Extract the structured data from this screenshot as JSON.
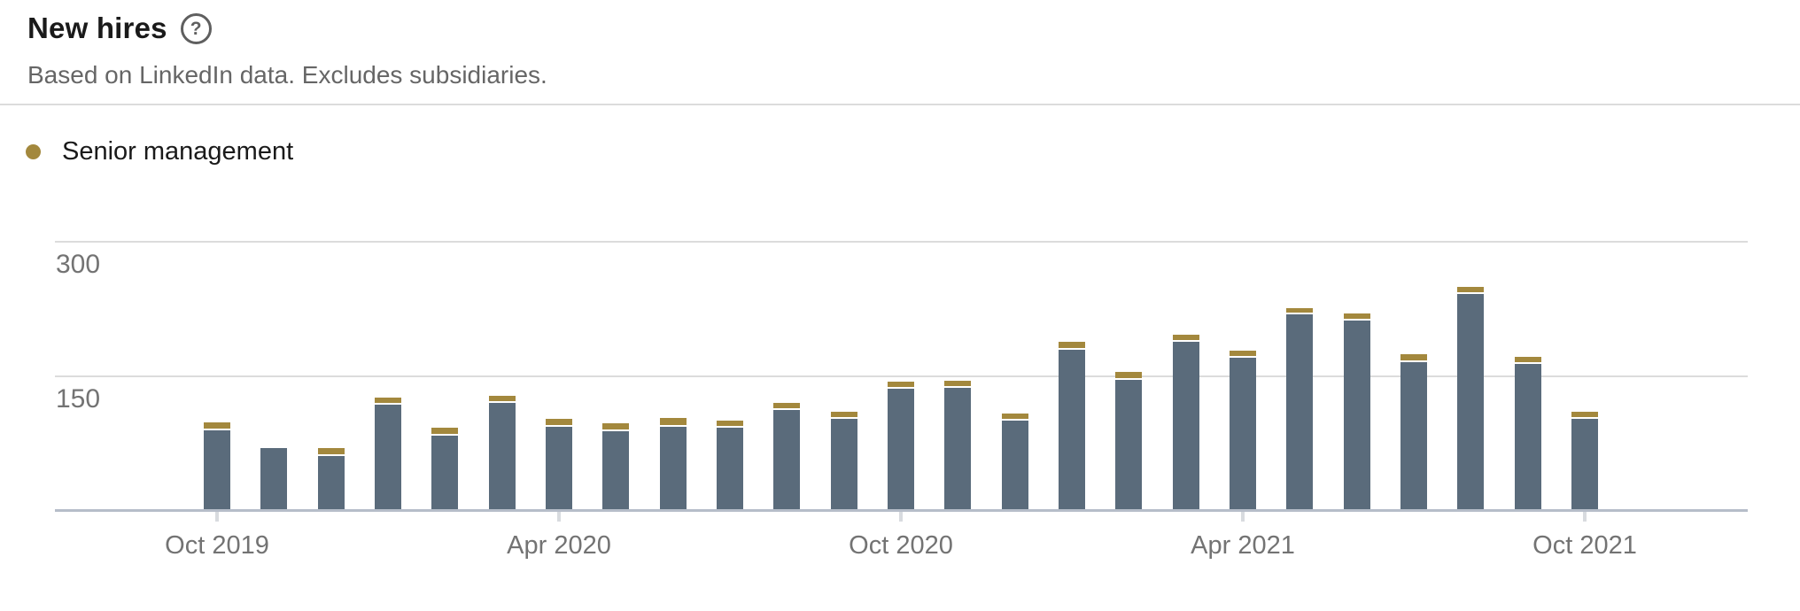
{
  "header": {
    "title": "New hires",
    "subtitle": "Based on LinkedIn data. Excludes subsidiaries.",
    "help_glyph": "?"
  },
  "legend": {
    "items": [
      {
        "label": "Senior management",
        "color": "#a3883d"
      }
    ]
  },
  "chart_data": {
    "type": "bar",
    "subtype": "stacked",
    "title": "New hires",
    "xlabel": "",
    "ylabel": "",
    "categories": [
      "Oct 2019",
      "Nov 2019",
      "Dec 2019",
      "Jan 2020",
      "Feb 2020",
      "Mar 2020",
      "Apr 2020",
      "May 2020",
      "Jun 2020",
      "Jul 2020",
      "Aug 2020",
      "Sep 2020",
      "Oct 2020",
      "Nov 2020",
      "Dec 2020",
      "Jan 2021",
      "Feb 2021",
      "Mar 2021",
      "Apr 2021",
      "May 2021",
      "Jun 2021",
      "Jul 2021",
      "Aug 2021",
      "Sep 2021",
      "Oct 2021"
    ],
    "series": [
      {
        "id": "base",
        "label": "",
        "color": "#5a6b7b",
        "values": [
          88,
          68,
          59,
          117,
          82,
          119,
          92,
          87,
          92,
          91,
          111,
          101,
          135,
          136,
          99,
          178,
          145,
          187,
          169,
          218,
          211,
          164,
          241,
          162,
          101
        ]
      },
      {
        "id": "senior_management",
        "label": "Senior management",
        "color": "#a3883d",
        "values": [
          9,
          0,
          9,
          8,
          9,
          8,
          9,
          9,
          10,
          8,
          8,
          8,
          8,
          8,
          8,
          9,
          8,
          8,
          8,
          7,
          8,
          9,
          8,
          8,
          8
        ]
      }
    ],
    "y_ticks": [
      150,
      300
    ],
    "ylim": [
      0,
      310
    ],
    "x_tick_indices": [
      0,
      6,
      12,
      18,
      24
    ],
    "x_tick_labels": [
      "Oct 2019",
      "Apr 2020",
      "Oct 2020",
      "Apr 2021",
      "Oct 2021"
    ],
    "grid": "horizontal",
    "legend_position": "top-left",
    "colors": {
      "axis_line": "#b6bdc9",
      "gridline": "#dcdcdc",
      "tick_mark": "#d8dbdf",
      "axis_text": "#737373"
    }
  }
}
